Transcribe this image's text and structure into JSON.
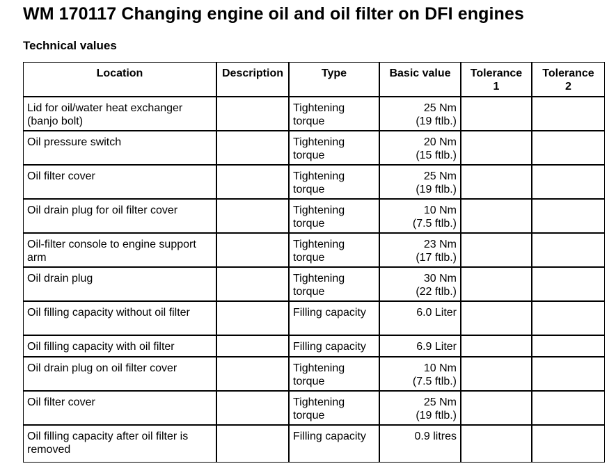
{
  "page": {
    "title": "WM 170117 Changing engine oil and oil filter on DFI engines",
    "section_heading": "Technical values"
  },
  "table": {
    "headers": {
      "location": "Location",
      "description": "Description",
      "type": "Type",
      "basic_value": "Basic value",
      "tolerance1_a": "Tolerance",
      "tolerance1_b": "1",
      "tolerance2_a": "Tolerance",
      "tolerance2_b": "2"
    },
    "rows": [
      {
        "location": "Lid for oil/water heat exchanger (banjo bolt)",
        "description": "",
        "type": "Tightening torque",
        "value_main": "25 Nm",
        "value_alt": "(19 ftlb.)",
        "tolerance1": "",
        "tolerance2": ""
      },
      {
        "location": "Oil pressure switch",
        "description": "",
        "type": "Tightening torque",
        "value_main": "20 Nm",
        "value_alt": "(15 ftlb.)",
        "tolerance1": "",
        "tolerance2": ""
      },
      {
        "location": "Oil filter cover",
        "description": "",
        "type": "Tightening torque",
        "value_main": "25 Nm",
        "value_alt": "(19 ftlb.)",
        "tolerance1": "",
        "tolerance2": ""
      },
      {
        "location": "Oil drain plug for oil filter cover",
        "description": "",
        "type": "Tightening torque",
        "value_main": "10 Nm",
        "value_alt": "(7.5 ftlb.)",
        "tolerance1": "",
        "tolerance2": ""
      },
      {
        "location": "Oil-filter console to engine support arm",
        "description": "",
        "type": "Tightening torque",
        "value_main": "23 Nm",
        "value_alt": "(17 ftlb.)",
        "tolerance1": "",
        "tolerance2": ""
      },
      {
        "location": "Oil drain plug",
        "description": "",
        "type": "Tightening torque",
        "value_main": "30 Nm",
        "value_alt": "(22 ftlb.)",
        "tolerance1": "",
        "tolerance2": ""
      },
      {
        "location": "Oil filling capacity without oil filter",
        "description": "",
        "type": "Filling capacity",
        "value_main": "6.0 Liter",
        "value_alt": "",
        "tolerance1": "",
        "tolerance2": ""
      },
      {
        "location": "Oil filling capacity with oil filter",
        "description": "",
        "type": "Filling capacity",
        "value_main": "6.9 Liter",
        "value_alt": "",
        "tolerance1": "",
        "tolerance2": ""
      },
      {
        "location": "Oil drain plug on oil filter cover",
        "description": "",
        "type": "Tightening torque",
        "value_main": "10 Nm",
        "value_alt": "(7.5 ftlb.)",
        "tolerance1": "",
        "tolerance2": ""
      },
      {
        "location": "Oil filter cover",
        "description": "",
        "type": "Tightening torque",
        "value_main": "25 Nm",
        "value_alt": "(19 ftlb.)",
        "tolerance1": "",
        "tolerance2": ""
      },
      {
        "location": "Oil filling capacity after oil filter is removed",
        "description": "",
        "type": "Filling capacity",
        "value_main": "0.9 litres",
        "value_alt": "",
        "tolerance1": "",
        "tolerance2": ""
      }
    ]
  }
}
